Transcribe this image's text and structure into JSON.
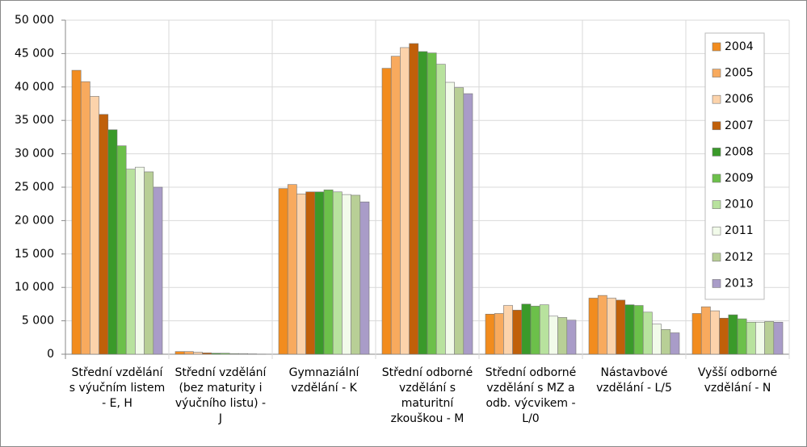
{
  "chart_data": {
    "type": "bar",
    "categories": [
      "Střední vzdělání s výučním listem - E, H",
      "Střední vzdělání (bez maturity i výučního listu) - J",
      "Gymnaziální vzdělání - K",
      "Střední odborné vzdělání s maturitní zkouškou - M",
      "Střední odborné vzdělání s MZ a odb. výcvikem - L/0",
      "Nástavbové vzdělání - L/5",
      "Vyšší odborné vzdělání - N"
    ],
    "series": [
      {
        "name": "2004",
        "color": "#f28c1e",
        "values": [
          42500,
          400,
          24800,
          42800,
          6000,
          8400,
          6100
        ]
      },
      {
        "name": "2005",
        "color": "#f8aa5e",
        "values": [
          40800,
          400,
          25400,
          44600,
          6100,
          8800,
          7100
        ]
      },
      {
        "name": "2006",
        "color": "#fcd3ab",
        "values": [
          38600,
          300,
          24000,
          45900,
          7300,
          8400,
          6500
        ]
      },
      {
        "name": "2007",
        "color": "#c0600a",
        "values": [
          35900,
          200,
          24300,
          46500,
          6600,
          8100,
          5400
        ]
      },
      {
        "name": "2008",
        "color": "#3a9a2a",
        "values": [
          33600,
          150,
          24300,
          45300,
          7500,
          7400,
          5900
        ]
      },
      {
        "name": "2009",
        "color": "#6cc04a",
        "values": [
          31200,
          150,
          24600,
          45100,
          7200,
          7300,
          5300
        ]
      },
      {
        "name": "2010",
        "color": "#b8e29e",
        "values": [
          27700,
          100,
          24300,
          43400,
          7400,
          6300,
          4800
        ]
      },
      {
        "name": "2011",
        "color": "#f2fbea",
        "values": [
          28000,
          100,
          23900,
          40700,
          5700,
          4500,
          4800
        ]
      },
      {
        "name": "2012",
        "color": "#b8cf96",
        "values": [
          27300,
          50,
          23800,
          39900,
          5500,
          3700,
          4900
        ]
      },
      {
        "name": "2013",
        "color": "#a99cc8",
        "values": [
          25000,
          20,
          22800,
          39000,
          5100,
          3200,
          4800
        ]
      }
    ],
    "ylim": [
      0,
      50000
    ],
    "yticks": [
      0,
      {
        "value": 5000,
        "label": "5 000"
      },
      {
        "value": 10000,
        "label": "10 000"
      },
      {
        "value": 15000,
        "label": "15 000"
      },
      {
        "value": 20000,
        "label": "20 000"
      },
      {
        "value": 25000,
        "label": "25 000"
      },
      {
        "value": 30000,
        "label": "30 000"
      },
      {
        "value": 35000,
        "label": "35 000"
      },
      {
        "value": 40000,
        "label": "40 000"
      },
      {
        "value": 45000,
        "label": "45 000"
      },
      {
        "value": 50000,
        "label": "50 000"
      }
    ],
    "grid": true,
    "legend": "right"
  }
}
